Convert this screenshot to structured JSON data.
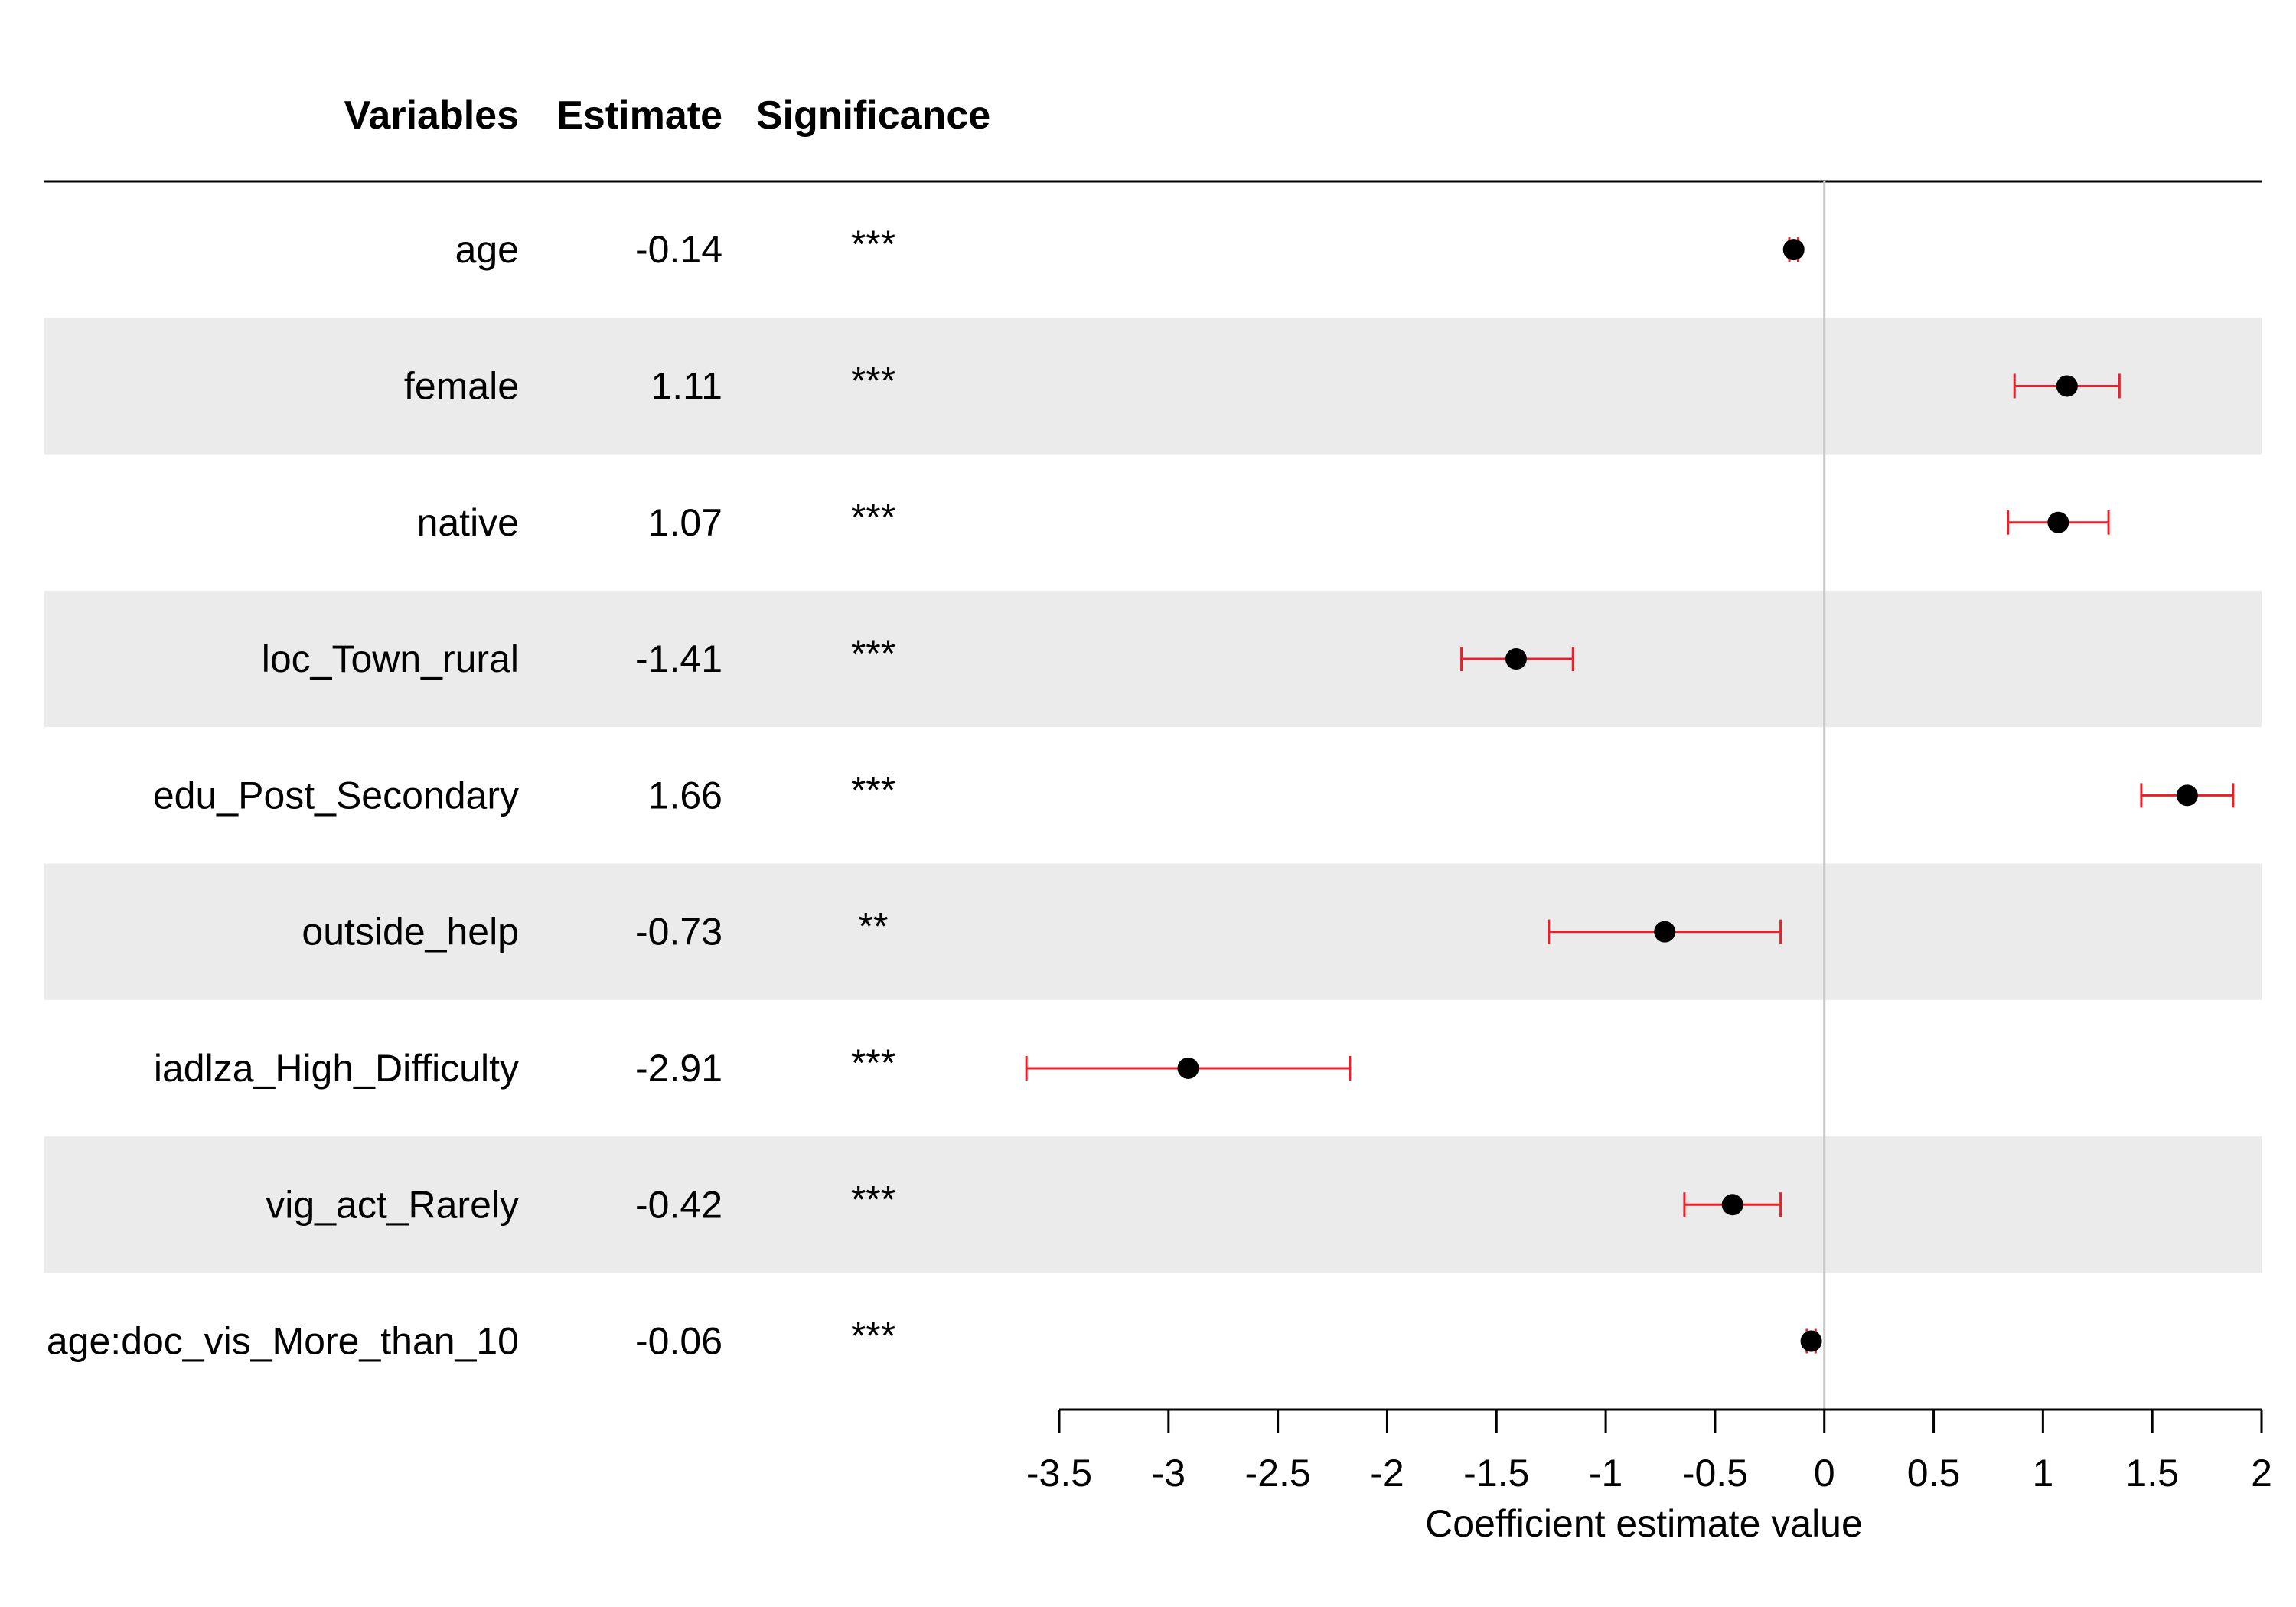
{
  "chart_data": {
    "type": "forest",
    "headers": {
      "variables": "Variables",
      "estimate": "Estimate",
      "significance": "Significance"
    },
    "rows": [
      {
        "variable": "age",
        "estimate_label": "-0.14",
        "significance": "***",
        "estimate": -0.14,
        "ci_low": -0.16,
        "ci_high": -0.12
      },
      {
        "variable": "female",
        "estimate_label": "1.11",
        "significance": "***",
        "estimate": 1.11,
        "ci_low": 0.87,
        "ci_high": 1.35
      },
      {
        "variable": "native",
        "estimate_label": "1.07",
        "significance": "***",
        "estimate": 1.07,
        "ci_low": 0.84,
        "ci_high": 1.3
      },
      {
        "variable": "loc_Town_rural",
        "estimate_label": "-1.41",
        "significance": "***",
        "estimate": -1.41,
        "ci_low": -1.66,
        "ci_high": -1.15
      },
      {
        "variable": "edu_Post_Secondary",
        "estimate_label": "1.66",
        "significance": "***",
        "estimate": 1.66,
        "ci_low": 1.45,
        "ci_high": 1.87
      },
      {
        "variable": "outside_help",
        "estimate_label": "-0.73",
        "significance": "**",
        "estimate": -0.73,
        "ci_low": -1.26,
        "ci_high": -0.2
      },
      {
        "variable": "iadlza_High_Difficulty",
        "estimate_label": "-2.91",
        "significance": "***",
        "estimate": -2.91,
        "ci_low": -3.65,
        "ci_high": -2.17
      },
      {
        "variable": "vig_act_Rarely",
        "estimate_label": "-0.42",
        "significance": "***",
        "estimate": -0.42,
        "ci_low": -0.64,
        "ci_high": -0.2
      },
      {
        "variable": "age:doc_vis_More_than_10",
        "estimate_label": "-0.06",
        "significance": "***",
        "estimate": -0.06,
        "ci_low": -0.08,
        "ci_high": -0.04
      }
    ],
    "xlim": [
      -3.5,
      2
    ],
    "xticks": [
      -3.5,
      -3,
      -2.5,
      -2,
      -1.5,
      -1,
      -0.5,
      0,
      0.5,
      1,
      1.5,
      2
    ],
    "xtick_labels": [
      "-3.5",
      "-3",
      "-2.5",
      "-2",
      "-1.5",
      "-1",
      "-0.5",
      "0",
      "0.5",
      "1",
      "1.5",
      "2"
    ],
    "xlabel": "Coefficient estimate value",
    "reference_line": 0,
    "colors": {
      "point": "#000000",
      "ci": "#e8202a",
      "stripe": "#ebebeb",
      "reference_line": "#c8c8c8",
      "axis": "#000000"
    }
  }
}
